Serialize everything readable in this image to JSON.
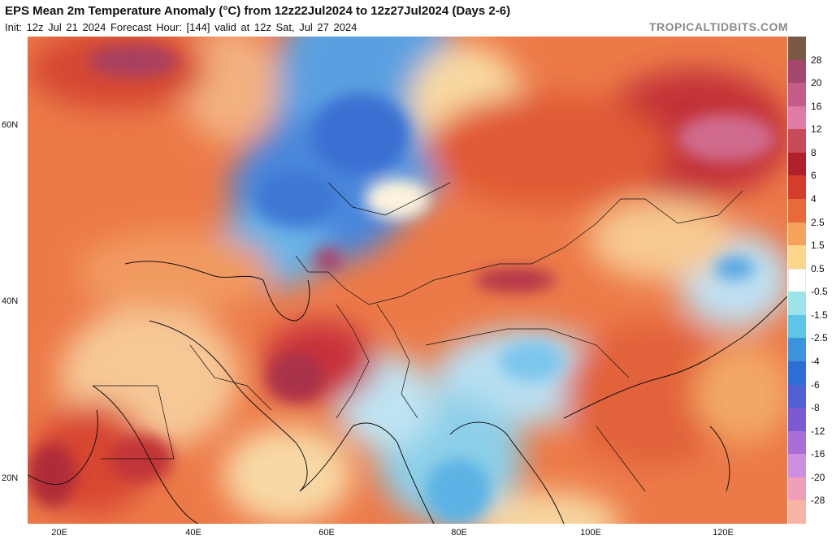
{
  "header": {
    "title": "EPS Mean 2m Temperature Anomaly (°C) from 12z22Jul2024 to 12z27Jul2024 (Days 2-6)",
    "subtitle": "Init: 12z Jul 21 2024   Forecast Hour: [144]   valid at 12z Sat, Jul 27 2024",
    "watermark": "TROPICALTIDBITS.COM"
  },
  "axes": {
    "latitude_labels": [
      "60N",
      "40N",
      "20N"
    ],
    "longitude_labels": [
      "20E",
      "40E",
      "60E",
      "80E",
      "100E",
      "120E"
    ]
  },
  "colorbar": {
    "labels": [
      "28",
      "20",
      "16",
      "12",
      "8",
      "6",
      "4",
      "2.5",
      "1.5",
      "0.5",
      "-0.5",
      "-1.5",
      "-2.5",
      "-4",
      "-6",
      "-8",
      "-12",
      "-16",
      "-20",
      "-28"
    ],
    "colors": [
      "#7a5a45",
      "#a3476e",
      "#c45b8a",
      "#e07aa6",
      "#c84a5a",
      "#b0202a",
      "#d43d2a",
      "#e8693a",
      "#f5a25a",
      "#fad78a",
      "#ffffff",
      "#9de3ea",
      "#5cc6e8",
      "#3c94de",
      "#2b6fd6",
      "#5061d4",
      "#7b5bd3",
      "#a76ed8",
      "#cf8fe0",
      "#ef9fb8",
      "#f5b5a5"
    ]
  }
}
